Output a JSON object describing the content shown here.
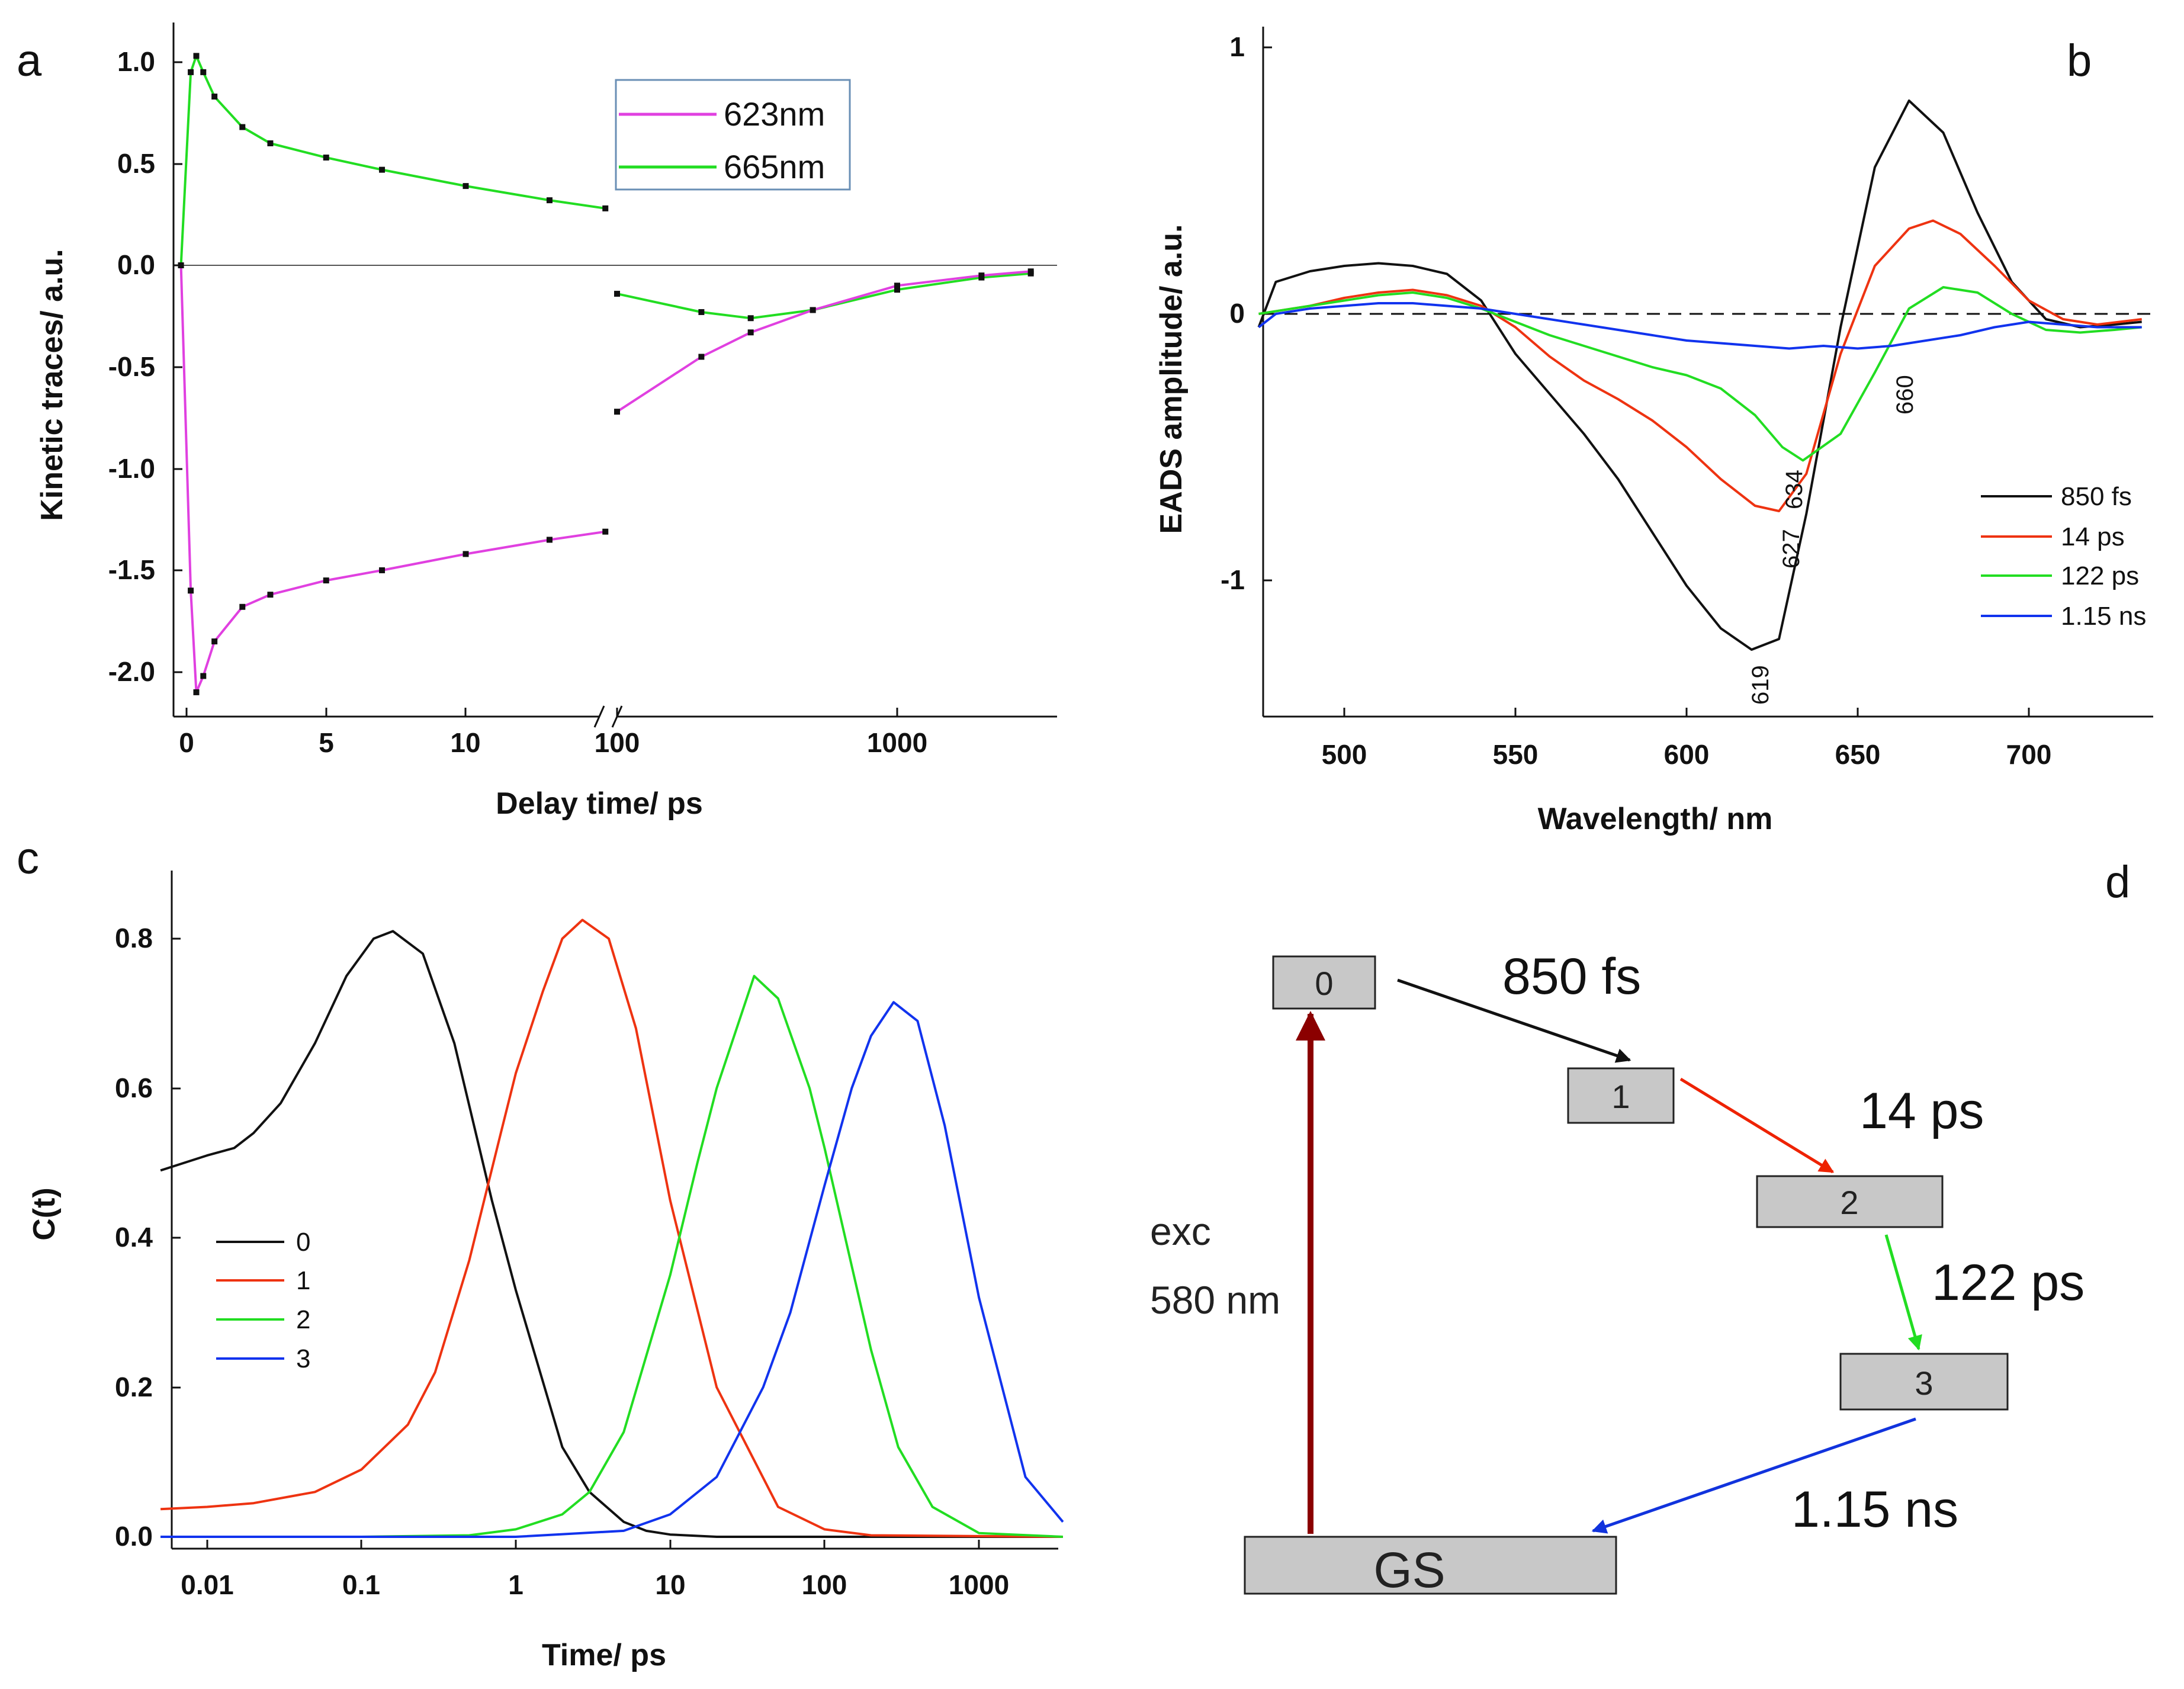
{
  "chart_data": [
    {
      "id": "a",
      "type": "line",
      "panel_label": "a",
      "xlabel": "Delay time/ ps",
      "ylabel": "Kinetic traces/ a.u.",
      "ylim": [
        -2.2,
        1.2
      ],
      "x_segments": [
        {
          "scale": "linear",
          "range": [
            -0.3,
            15
          ]
        },
        {
          "scale": "log",
          "range": [
            80,
            3000
          ]
        }
      ],
      "xticks": [
        "0",
        "5",
        "10",
        "100",
        "1000"
      ],
      "yticks": [
        "1.0",
        "0.5",
        "0.0",
        "-0.5",
        "-1.0",
        "-1.5",
        "-2.0"
      ],
      "legend": [
        {
          "name": "623nm",
          "color": "#e040e0"
        },
        {
          "name": "665nm",
          "color": "#22dd22"
        }
      ],
      "series": [
        {
          "name": "665nm",
          "color": "#22dd22",
          "x": [
            -0.2,
            0.15,
            0.35,
            0.6,
            1,
            2,
            3,
            5,
            7,
            10,
            13,
            15,
            100,
            200,
            300,
            500,
            1000,
            2000,
            3000
          ],
          "y": [
            0,
            0.95,
            1.03,
            0.95,
            0.83,
            0.68,
            0.6,
            0.53,
            0.47,
            0.39,
            0.32,
            0.28,
            -0.14,
            -0.23,
            -0.26,
            -0.22,
            -0.12,
            -0.06,
            -0.04
          ]
        },
        {
          "name": "623nm",
          "color": "#e040e0",
          "x": [
            -0.2,
            0.15,
            0.35,
            0.6,
            1,
            2,
            3,
            5,
            7,
            10,
            13,
            15,
            100,
            200,
            300,
            500,
            1000,
            2000,
            3000
          ],
          "y": [
            0,
            -1.6,
            -2.1,
            -2.02,
            -1.85,
            -1.68,
            -1.62,
            -1.55,
            -1.5,
            -1.42,
            -1.35,
            -1.31,
            -0.72,
            -0.45,
            -0.33,
            -0.22,
            -0.1,
            -0.05,
            -0.03
          ]
        }
      ]
    },
    {
      "id": "b",
      "type": "line",
      "panel_label": "b",
      "xlabel": "Wavelength/ nm",
      "ylabel": "EADS amplitude/ a.u.",
      "xlim": [
        475,
        735
      ],
      "ylim": [
        -1.5,
        1.03
      ],
      "xticks": [
        "500",
        "550",
        "600",
        "650",
        "700"
      ],
      "yticks": [
        "1",
        "0",
        "-1"
      ],
      "annotations": [
        "619",
        "627",
        "634",
        "660"
      ],
      "series": [
        {
          "name": "850 fs",
          "color": "#111111",
          "x": [
            475,
            480,
            490,
            500,
            510,
            520,
            530,
            540,
            550,
            560,
            570,
            580,
            590,
            600,
            610,
            619,
            627,
            635,
            645,
            655,
            665,
            675,
            685,
            695,
            705,
            715,
            725,
            733
          ],
          "y": [
            -0.05,
            0.12,
            0.16,
            0.18,
            0.19,
            0.18,
            0.15,
            0.05,
            -0.15,
            -0.3,
            -0.45,
            -0.62,
            -0.82,
            -1.02,
            -1.18,
            -1.26,
            -1.22,
            -0.75,
            -0.05,
            0.55,
            0.8,
            0.68,
            0.38,
            0.12,
            -0.02,
            -0.05,
            -0.04,
            -0.03
          ]
        },
        {
          "name": "14 ps",
          "color": "#ee3311",
          "x": [
            475,
            490,
            500,
            510,
            520,
            530,
            540,
            550,
            560,
            570,
            580,
            590,
            600,
            610,
            620,
            627,
            635,
            645,
            655,
            665,
            672,
            680,
            690,
            700,
            710,
            720,
            733
          ],
          "y": [
            0,
            0.03,
            0.06,
            0.08,
            0.09,
            0.07,
            0.03,
            -0.05,
            -0.16,
            -0.25,
            -0.32,
            -0.4,
            -0.5,
            -0.62,
            -0.72,
            -0.74,
            -0.6,
            -0.15,
            0.18,
            0.32,
            0.35,
            0.3,
            0.18,
            0.05,
            -0.02,
            -0.04,
            -0.02
          ]
        },
        {
          "name": "122 ps",
          "color": "#22dd22",
          "x": [
            475,
            490,
            500,
            510,
            520,
            530,
            540,
            550,
            560,
            570,
            580,
            590,
            600,
            610,
            620,
            628,
            634,
            645,
            655,
            665,
            675,
            685,
            695,
            705,
            715,
            725,
            733
          ],
          "y": [
            0,
            0.03,
            0.05,
            0.07,
            0.08,
            0.06,
            0.02,
            -0.03,
            -0.08,
            -0.12,
            -0.16,
            -0.2,
            -0.23,
            -0.28,
            -0.38,
            -0.5,
            -0.55,
            -0.45,
            -0.22,
            0.02,
            0.1,
            0.08,
            0.0,
            -0.06,
            -0.07,
            -0.06,
            -0.05
          ]
        },
        {
          "name": "1.15 ns",
          "color": "#1133ee",
          "x": [
            475,
            480,
            490,
            500,
            510,
            520,
            530,
            540,
            550,
            560,
            570,
            580,
            590,
            600,
            610,
            620,
            630,
            640,
            650,
            660,
            670,
            680,
            690,
            700,
            710,
            720,
            733
          ],
          "y": [
            -0.05,
            0.0,
            0.02,
            0.03,
            0.04,
            0.04,
            0.03,
            0.02,
            0.0,
            -0.02,
            -0.04,
            -0.06,
            -0.08,
            -0.1,
            -0.11,
            -0.12,
            -0.13,
            -0.12,
            -0.13,
            -0.12,
            -0.1,
            -0.08,
            -0.05,
            -0.03,
            -0.04,
            -0.05,
            -0.05
          ]
        }
      ]
    },
    {
      "id": "c",
      "type": "line",
      "panel_label": "c",
      "xlabel": "Time/ ps",
      "ylabel": "C(t)",
      "xscale": "log",
      "xlim": [
        0.005,
        3500
      ],
      "ylim": [
        -0.01,
        0.88
      ],
      "xticks": [
        "0.01",
        "0.1",
        "1",
        "10",
        "100",
        "1000"
      ],
      "yticks": [
        "0.0",
        "0.2",
        "0.4",
        "0.6",
        "0.8"
      ],
      "series": [
        {
          "name": "0",
          "color": "#111111",
          "x": [
            0.005,
            0.01,
            0.015,
            0.02,
            0.03,
            0.05,
            0.08,
            0.12,
            0.16,
            0.25,
            0.4,
            0.7,
            1,
            2,
            3,
            5,
            7,
            10,
            20,
            100,
            3500
          ],
          "y": [
            0.49,
            0.51,
            0.52,
            0.54,
            0.58,
            0.66,
            0.75,
            0.8,
            0.81,
            0.78,
            0.66,
            0.45,
            0.33,
            0.12,
            0.06,
            0.02,
            0.008,
            0.003,
            0.0,
            0.0,
            0.0
          ]
        },
        {
          "name": "1",
          "color": "#ee3311",
          "x": [
            0.005,
            0.01,
            0.02,
            0.05,
            0.1,
            0.2,
            0.3,
            0.5,
            0.8,
            1,
            1.5,
            2,
            2.7,
            4,
            6,
            10,
            20,
            50,
            100,
            200,
            3500
          ],
          "y": [
            0.037,
            0.04,
            0.045,
            0.06,
            0.09,
            0.15,
            0.22,
            0.37,
            0.54,
            0.62,
            0.73,
            0.8,
            0.825,
            0.8,
            0.68,
            0.45,
            0.2,
            0.04,
            0.01,
            0.002,
            0.0
          ]
        },
        {
          "name": "2",
          "color": "#22dd22",
          "x": [
            0.005,
            0.1,
            0.5,
            1,
            2,
            3,
            5,
            10,
            15,
            20,
            35,
            50,
            80,
            100,
            200,
            300,
            500,
            1000,
            3500
          ],
          "y": [
            0.0,
            0.0,
            0.002,
            0.01,
            0.03,
            0.06,
            0.14,
            0.35,
            0.5,
            0.6,
            0.75,
            0.72,
            0.6,
            0.52,
            0.25,
            0.12,
            0.04,
            0.005,
            0.0
          ]
        },
        {
          "name": "3",
          "color": "#1133ee",
          "x": [
            0.005,
            1,
            5,
            10,
            20,
            40,
            60,
            100,
            150,
            200,
            280,
            400,
            600,
            1000,
            2000,
            3500
          ],
          "y": [
            0.0,
            0.0,
            0.008,
            0.03,
            0.08,
            0.2,
            0.3,
            0.47,
            0.6,
            0.67,
            0.715,
            0.69,
            0.55,
            0.32,
            0.08,
            0.02
          ]
        }
      ]
    }
  ],
  "diagram": {
    "panel_label": "d",
    "states": [
      "0",
      "1",
      "2",
      "3",
      "GS"
    ],
    "lifetimes": [
      "850 fs",
      "14 ps",
      "122 ps",
      "1.15 ns"
    ],
    "excitation": [
      "exc",
      "580 nm"
    ],
    "colors": {
      "excitation": "#8b0000",
      "t0": "#111111",
      "t1": "#ee2200",
      "t2": "#22dd22",
      "t3": "#1133dd"
    }
  }
}
